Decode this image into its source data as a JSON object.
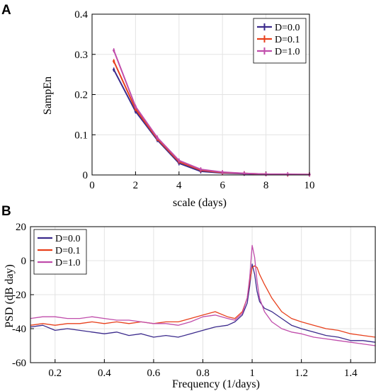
{
  "chart_data": [
    {
      "panel": "A",
      "type": "line",
      "title": "",
      "xlabel": "scale (days)",
      "ylabel": "SampEn",
      "xlim": [
        0,
        10
      ],
      "ylim": [
        0,
        0.4
      ],
      "xticks": [
        "0",
        "2",
        "4",
        "6",
        "8",
        "10"
      ],
      "yticks": [
        "0",
        "0.1",
        "0.2",
        "0.3",
        "0.4"
      ],
      "grid": true,
      "legend_position": "top-right",
      "x": [
        1,
        2,
        3,
        4,
        5,
        6,
        7,
        8,
        9,
        10
      ],
      "series": [
        {
          "name": "D=0.0",
          "color": "#3b2a8c",
          "values": [
            0.262,
            0.158,
            0.087,
            0.029,
            0.009,
            0.005,
            0.003,
            0.002,
            0.001,
            0.001
          ]
        },
        {
          "name": "D=0.1",
          "color": "#e8401c",
          "values": [
            0.283,
            0.164,
            0.09,
            0.033,
            0.012,
            0.006,
            0.004,
            0.002,
            0.001,
            0.001
          ]
        },
        {
          "name": "D=1.0",
          "color": "#c04dab",
          "values": [
            0.31,
            0.17,
            0.093,
            0.036,
            0.014,
            0.007,
            0.004,
            0.002,
            0.002,
            0.001
          ]
        }
      ]
    },
    {
      "panel": "B",
      "type": "line",
      "title": "",
      "xlabel": "Frequency (1/days)",
      "ylabel": "PSD (dB day)",
      "xlim": [
        0.1,
        1.5
      ],
      "ylim": [
        -60,
        20
      ],
      "xticks": [
        "0.2",
        "0.4",
        "0.6",
        "0.8",
        "1",
        "1.2",
        "1.4"
      ],
      "yticks": [
        "-60",
        "-40",
        "-20",
        "0",
        "20"
      ],
      "grid": true,
      "legend_position": "top-left",
      "x": [
        0.1,
        0.15,
        0.2,
        0.25,
        0.3,
        0.35,
        0.4,
        0.45,
        0.5,
        0.55,
        0.6,
        0.65,
        0.7,
        0.75,
        0.8,
        0.85,
        0.9,
        0.93,
        0.96,
        0.98,
        0.99,
        1.0,
        1.01,
        1.02,
        1.03,
        1.05,
        1.08,
        1.12,
        1.16,
        1.2,
        1.25,
        1.3,
        1.35,
        1.4,
        1.45,
        1.5
      ],
      "series": [
        {
          "name": "D=0.0",
          "color": "#3b2a8c",
          "values": [
            -39,
            -38,
            -41,
            -40,
            -41,
            -42,
            -43,
            -42,
            -44,
            -43,
            -45,
            -44,
            -45,
            -43,
            -41,
            -39,
            -38,
            -36,
            -32,
            -25,
            -15,
            -2,
            -8,
            -18,
            -24,
            -28,
            -30,
            -34,
            -38,
            -40,
            -42,
            -44,
            -45,
            -47,
            -47,
            -48
          ]
        },
        {
          "name": "D=0.1",
          "color": "#e8401c",
          "values": [
            -38,
            -37,
            -38,
            -37,
            -37,
            -36,
            -37,
            -36,
            -37,
            -36,
            -37,
            -36,
            -36,
            -34,
            -32,
            -30,
            -33,
            -34,
            -30,
            -22,
            -12,
            -4,
            -3,
            -4,
            -8,
            -14,
            -22,
            -30,
            -34,
            -36,
            -38,
            -40,
            -41,
            -43,
            -44,
            -45
          ]
        },
        {
          "name": "D=1.0",
          "color": "#c04dab",
          "values": [
            -34,
            -33,
            -33,
            -34,
            -34,
            -33,
            -34,
            -35,
            -35,
            -36,
            -37,
            -37,
            -38,
            -36,
            -33,
            -32,
            -34,
            -35,
            -31,
            -22,
            -10,
            9,
            2,
            -12,
            -22,
            -30,
            -36,
            -40,
            -42,
            -43,
            -45,
            -46,
            -47,
            -48,
            -49,
            -50
          ]
        }
      ]
    }
  ]
}
